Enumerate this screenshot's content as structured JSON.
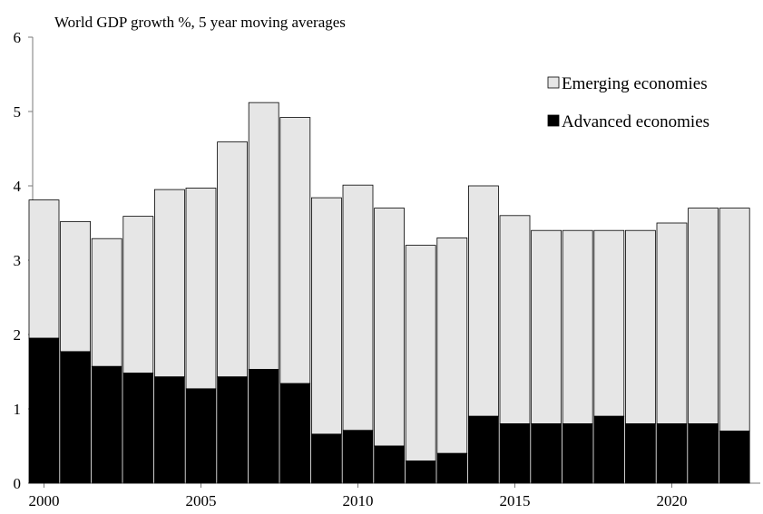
{
  "chart_data": {
    "type": "bar",
    "stacked": true,
    "title": "World GDP growth %,  5 year moving averages",
    "xlabel": "",
    "ylabel": "",
    "ylim": [
      0,
      6
    ],
    "yticks": [
      0,
      1,
      2,
      3,
      4,
      5,
      6
    ],
    "grid": false,
    "legend": "top-right",
    "categories": [
      2000,
      2001,
      2002,
      2003,
      2004,
      2005,
      2006,
      2007,
      2008,
      2009,
      2010,
      2011,
      2012,
      2013,
      2014,
      2015,
      2016,
      2017,
      2018,
      2019,
      2020,
      2021,
      2022
    ],
    "xtick_labels": [
      {
        "year": 2000,
        "label": "2000"
      },
      {
        "year": 2005,
        "label": "2005"
      },
      {
        "year": 2010,
        "label": "2010"
      },
      {
        "year": 2015,
        "label": "2015"
      },
      {
        "year": 2020,
        "label": "2020"
      }
    ],
    "series": [
      {
        "name": "Advanced economies",
        "color": "#000000",
        "values": [
          1.95,
          1.77,
          1.57,
          1.48,
          1.43,
          1.27,
          1.43,
          1.53,
          1.34,
          0.66,
          0.71,
          0.5,
          0.3,
          0.4,
          0.9,
          0.8,
          0.8,
          0.8,
          0.9,
          0.8,
          0.8,
          0.8,
          0.7
        ]
      },
      {
        "name": "Emerging economies",
        "color": "#e6e6e6",
        "values": [
          1.86,
          1.75,
          1.72,
          2.11,
          2.52,
          2.7,
          3.16,
          3.59,
          3.58,
          3.18,
          3.3,
          3.2,
          2.9,
          2.9,
          3.1,
          2.8,
          2.6,
          2.6,
          2.5,
          2.6,
          2.7,
          2.9,
          3.0
        ]
      }
    ],
    "legend_order": [
      "Emerging economies",
      "Advanced economies"
    ]
  }
}
